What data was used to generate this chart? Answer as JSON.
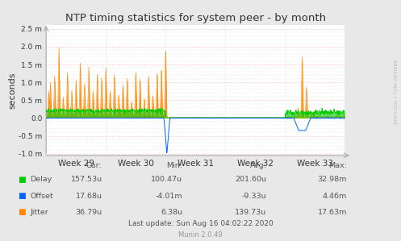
{
  "title": "NTP timing statistics for system peer - by month",
  "ylabel": "seconds",
  "right_label": "RRDTOOL / TOBI OETIKER",
  "bg_color": "#e8e8e8",
  "plot_bg_color": "#ffffff",
  "grid_color_major": "#ffaaaa",
  "grid_color_minor": "#cccccc",
  "ylim": [
    -0.00105,
    0.0026
  ],
  "yticks": [
    -0.001,
    -0.0005,
    0.0,
    0.0005,
    0.001,
    0.0015,
    0.002,
    0.0025
  ],
  "ytick_labels": [
    "-1.0 m",
    "-0.5 m",
    "0.0",
    "0.5 m",
    "1.0 m",
    "1.5 m",
    "2.0 m",
    "2.5 m"
  ],
  "xtick_labels": [
    "Week 29",
    "Week 30",
    "Week 31",
    "Week 32",
    "Week 33"
  ],
  "colors": {
    "delay": "#00cc00",
    "offset": "#0066ff",
    "jitter": "#ff8800",
    "text": "#333333",
    "legend_text": "#555555",
    "munin": "#999999",
    "axis_arrow": "#aaaaaa"
  },
  "legend": {
    "Delay": {
      "cur": "157.53u",
      "min": "100.47u",
      "avg": "201.60u",
      "max": "32.98m"
    },
    "Offset": {
      "cur": "17.68u",
      "min": "-4.01m",
      "avg": "-9.33u",
      "max": "4.46m"
    },
    "Jitter": {
      "cur": "36.79u",
      "min": "6.38u",
      "avg": "139.73u",
      "max": "17.63m"
    }
  },
  "last_update": "Last update: Sun Aug 16 04:02:22 2020",
  "munin_version": "Munin 2.0.49"
}
